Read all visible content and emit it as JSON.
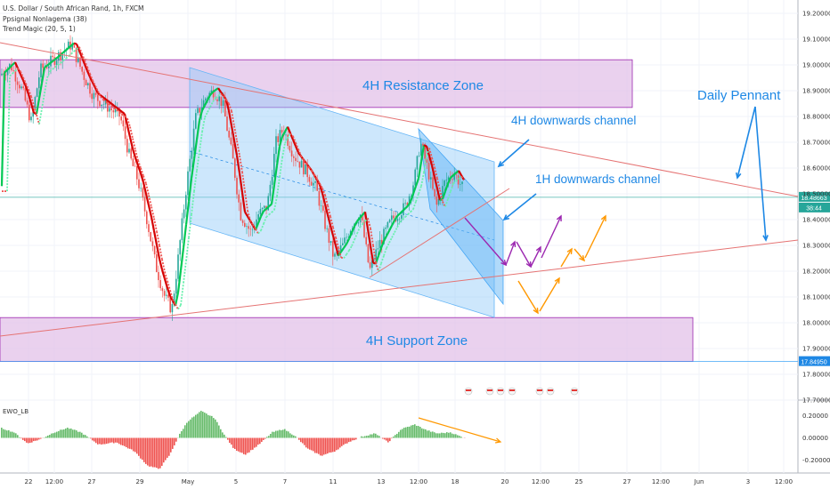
{
  "header": {
    "symbol": "U.S. Dollar / South African Rand, 1h, FXCM",
    "indicator_1": "Ppsignal Nonlagema (38)",
    "indicator_2": "Trend Magic (20, 5, 1)"
  },
  "chart_data": {
    "type": "candlestick",
    "ylim": [
      17.7,
      19.2
    ],
    "price_ticks": [
      "19.20000",
      "19.10000",
      "19.00000",
      "18.90000",
      "18.80000",
      "18.70000",
      "18.60000",
      "18.50000",
      "18.40000",
      "18.30000",
      "18.20000",
      "18.10000",
      "18.00000",
      "17.90000",
      "17.80000",
      "17.70000"
    ],
    "current_price": "18.48663",
    "countdown": "38:44",
    "support_price": "17.84950",
    "x_ticks": [
      "22",
      "12:00",
      "27",
      "29",
      "May",
      "5",
      "7",
      "11",
      "13",
      "12:00",
      "18",
      "20",
      "12:00",
      "25",
      "27",
      "12:00",
      "Jun",
      "3",
      "12:00"
    ],
    "zones": [
      {
        "label": "4H Resistance Zone",
        "top": 19.02,
        "bottom": 18.835
      },
      {
        "label": "4H Support Zone",
        "top": 18.02,
        "bottom": 17.85
      }
    ],
    "annotations": {
      "channel_4h": "4H downwards channel",
      "channel_1h": "1H downwards channel",
      "pennant": "Daily Pennant"
    },
    "colors": {
      "up": "#26a69a",
      "down": "#ef5350",
      "zone": "#e1bee7",
      "zone_border": "#9c27b0",
      "channel": "#90caf9",
      "trend": "#e57373",
      "annotation": "#1e88e5",
      "orange": "#ff9800",
      "purple": "#9c27b0"
    },
    "oscillator": {
      "name": "EWO_LB",
      "ylim": [
        -0.3,
        0.3
      ],
      "ticks": [
        "0.20000",
        "0.00000",
        "-0.20000"
      ]
    }
  }
}
